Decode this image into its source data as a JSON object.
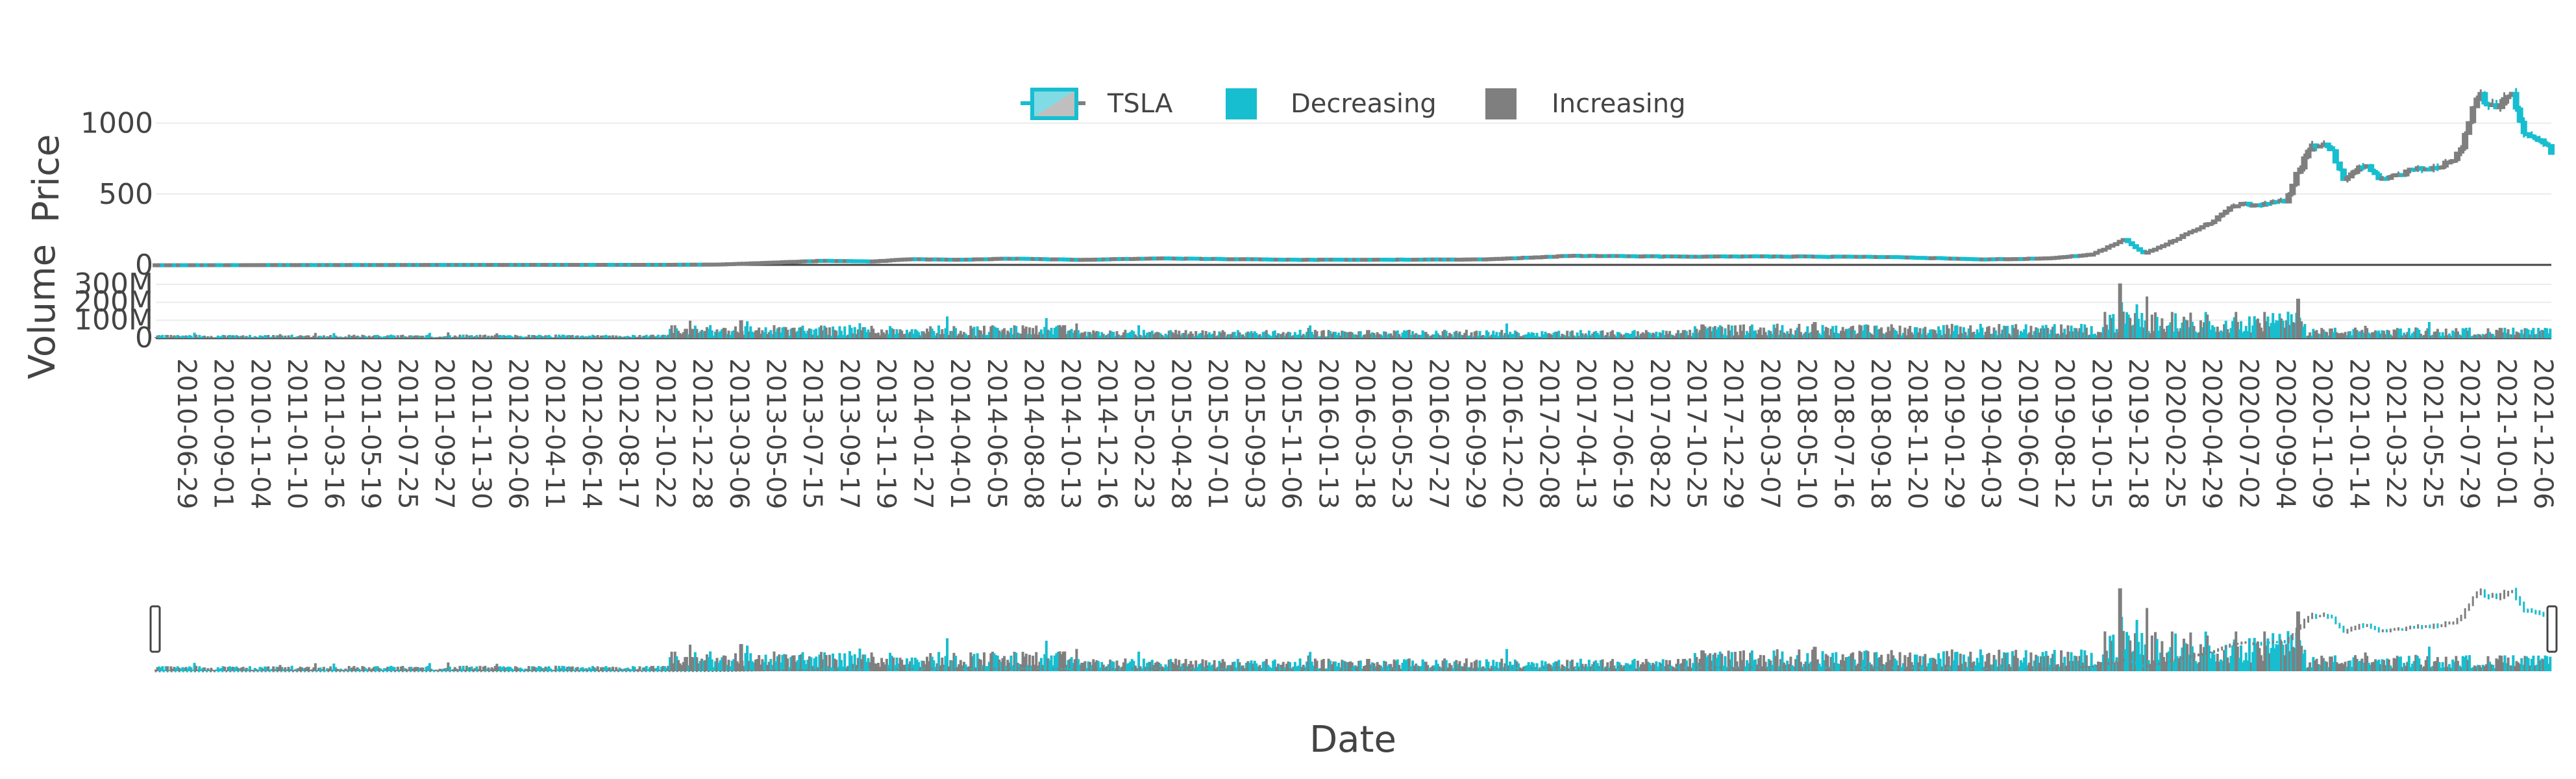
{
  "chart_data": {
    "type": "candlestick",
    "legend": {
      "placement": "top-center",
      "orientation": "horizontal",
      "items": [
        {
          "label": "TSLA",
          "kind": "candlestick"
        },
        {
          "label": "Decreasing",
          "color": "#17becf"
        },
        {
          "label": "Increasing",
          "color": "#7f7f7f"
        }
      ]
    },
    "colors": {
      "increasing": "#7f7f7f",
      "decreasing": "#17becf"
    },
    "price_panel": {
      "ylabel": "Price",
      "ylim": [
        0,
        1250
      ],
      "yticks": [
        0,
        500,
        1000
      ],
      "ytick_labels": [
        "0",
        "500",
        "1000"
      ]
    },
    "volume_panel": {
      "ylabel": "Volume",
      "ylim": [
        0,
        300000000
      ],
      "yticks": [
        0,
        100000000,
        200000000,
        300000000
      ],
      "ytick_labels": [
        "0",
        "100M",
        "200M",
        "300M"
      ]
    },
    "xlabel": "Date",
    "x_range": [
      "2010-06-29",
      "2022-03-15"
    ],
    "x_tick_labels": [
      "2010-06-29",
      "2010-09-01",
      "2010-11-04",
      "2011-01-10",
      "2011-03-16",
      "2011-05-19",
      "2011-07-25",
      "2011-09-27",
      "2011-11-30",
      "2012-02-06",
      "2012-04-11",
      "2012-06-14",
      "2012-08-17",
      "2012-10-22",
      "2012-12-28",
      "2013-03-06",
      "2013-05-09",
      "2013-07-15",
      "2013-09-17",
      "2013-11-19",
      "2014-01-27",
      "2014-04-01",
      "2014-06-05",
      "2014-08-08",
      "2014-10-13",
      "2014-12-16",
      "2015-02-23",
      "2015-04-28",
      "2015-07-01",
      "2015-09-03",
      "2015-11-06",
      "2016-01-13",
      "2016-03-18",
      "2016-05-23",
      "2016-07-27",
      "2016-09-29",
      "2016-12-02",
      "2017-02-08",
      "2017-04-13",
      "2017-06-19",
      "2017-08-22",
      "2017-10-25",
      "2017-12-29",
      "2018-03-07",
      "2018-05-10",
      "2018-07-16",
      "2018-09-18",
      "2018-11-20",
      "2019-01-29",
      "2019-04-03",
      "2019-06-07",
      "2019-08-12",
      "2019-10-15",
      "2019-12-18",
      "2020-02-25",
      "2020-04-29",
      "2020-07-02",
      "2020-09-04",
      "2020-11-09",
      "2021-01-14",
      "2021-03-22",
      "2021-05-25",
      "2021-07-29",
      "2021-10-01",
      "2021-12-06"
    ],
    "price_series": {
      "name": "TSLA",
      "x": [
        "2010-06-29",
        "2011-01-01",
        "2012-01-01",
        "2013-01-01",
        "2013-04-01",
        "2013-07-01",
        "2013-10-01",
        "2014-01-01",
        "2014-03-01",
        "2014-06-01",
        "2014-09-01",
        "2015-01-01",
        "2015-06-01",
        "2016-01-01",
        "2016-06-01",
        "2017-01-01",
        "2017-06-01",
        "2018-01-01",
        "2018-06-01",
        "2019-01-01",
        "2019-06-01",
        "2019-10-01",
        "2019-12-18",
        "2020-02-10",
        "2020-03-18",
        "2020-05-01",
        "2020-07-10",
        "2020-08-31",
        "2020-10-01",
        "2020-11-24",
        "2021-01-08",
        "2021-02-10",
        "2021-03-08",
        "2021-04-15",
        "2021-05-20",
        "2021-07-01",
        "2021-08-20",
        "2021-10-01",
        "2021-11-04",
        "2021-12-01",
        "2022-01-03",
        "2022-01-27",
        "2022-03-01",
        "2022-03-15"
      ],
      "close": [
        4,
        5,
        6,
        7,
        9,
        22,
        35,
        30,
        46,
        42,
        50,
        42,
        52,
        43,
        42,
        45,
        70,
        64,
        66,
        61,
        44,
        52,
        80,
        180,
        80,
        160,
        290,
        430,
        420,
        450,
        850,
        850,
        600,
        700,
        590,
        660,
        690,
        780,
        1230,
        1100,
        1200,
        900,
        880,
        780
      ]
    },
    "volume_series": {
      "notable_peaks": [
        {
          "x": "2013-05-09",
          "value": 100000000
        },
        {
          "x": "2018-08-08",
          "value": 90000000
        },
        {
          "x": "2020-02-04",
          "value": 305000000
        },
        {
          "x": "2020-12-18",
          "value": 220000000
        }
      ],
      "typical_volume": {
        "2010-2012": 15000000,
        "2013-2014": 55000000,
        "2015-2017": 35000000,
        "2018-2019": 60000000,
        "2020": 110000000,
        "2021-2022": 45000000
      }
    },
    "range_slider": {
      "visible": true
    }
  }
}
